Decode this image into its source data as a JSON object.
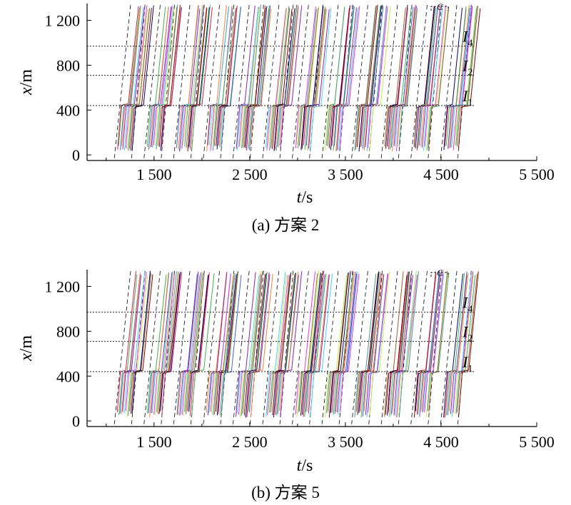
{
  "chart_data": [
    {
      "type": "line",
      "panel": "a",
      "caption": "(a) 方案 2",
      "xlabel_var": "t",
      "xlabel_unit": "/s",
      "ylabel_var": "x",
      "ylabel_unit": "/m",
      "xlim": [
        800,
        5500
      ],
      "ylim": [
        -50,
        1350
      ],
      "x_ticks": [
        1500,
        2500,
        3500,
        4500,
        5500
      ],
      "x_tick_labels": [
        "1 500",
        "2 500",
        "3 500",
        "4 500",
        "5 500"
      ],
      "y_ticks": [
        0,
        400,
        800,
        1200
      ],
      "y_tick_labels": [
        "0",
        "400",
        "800",
        "1 200"
      ],
      "reference_lines": [
        {
          "label": "I",
          "sub": "4",
          "y": 970
        },
        {
          "label": "I",
          "sub": "2",
          "y": 710
        },
        {
          "label": "I",
          "sub": "1",
          "y": 440
        }
      ],
      "annotation": "C",
      "cycle_starts": [
        1115,
        1425,
        1735,
        2045,
        2355,
        2665,
        2975,
        3285,
        3595,
        3905,
        4215,
        4525
      ],
      "series_colors": [
        "#e6194b",
        "#3cb44b",
        "#4363d8",
        "#f58231",
        "#911eb4",
        "#42d4f4",
        "#f032e6",
        "#bfef45",
        "#469990",
        "#9a6324",
        "#800000",
        "#000075"
      ]
    },
    {
      "type": "line",
      "panel": "b",
      "caption": "(b) 方案 5",
      "xlabel_var": "t",
      "xlabel_unit": "/s",
      "ylabel_var": "x",
      "ylabel_unit": "/m",
      "xlim": [
        800,
        5500
      ],
      "ylim": [
        -50,
        1350
      ],
      "x_ticks": [
        1500,
        2500,
        3500,
        4500,
        5500
      ],
      "x_tick_labels": [
        "1 500",
        "2 500",
        "3 500",
        "4 500",
        "5 500"
      ],
      "y_ticks": [
        0,
        400,
        800,
        1200
      ],
      "y_tick_labels": [
        "0",
        "400",
        "800",
        "1 200"
      ],
      "reference_lines": [
        {
          "label": "I",
          "sub": "4",
          "y": 970
        },
        {
          "label": "I",
          "sub": "2",
          "y": 710
        },
        {
          "label": "I",
          "sub": "1",
          "y": 440
        }
      ],
      "annotation": "C",
      "cycle_starts": [
        1115,
        1425,
        1735,
        2045,
        2355,
        2665,
        2975,
        3285,
        3595,
        3905,
        4215,
        4525
      ],
      "series_colors": [
        "#e6194b",
        "#3cb44b",
        "#4363d8",
        "#f58231",
        "#911eb4",
        "#42d4f4",
        "#f032e6",
        "#bfef45",
        "#469990",
        "#9a6324",
        "#800000",
        "#000075"
      ]
    }
  ]
}
